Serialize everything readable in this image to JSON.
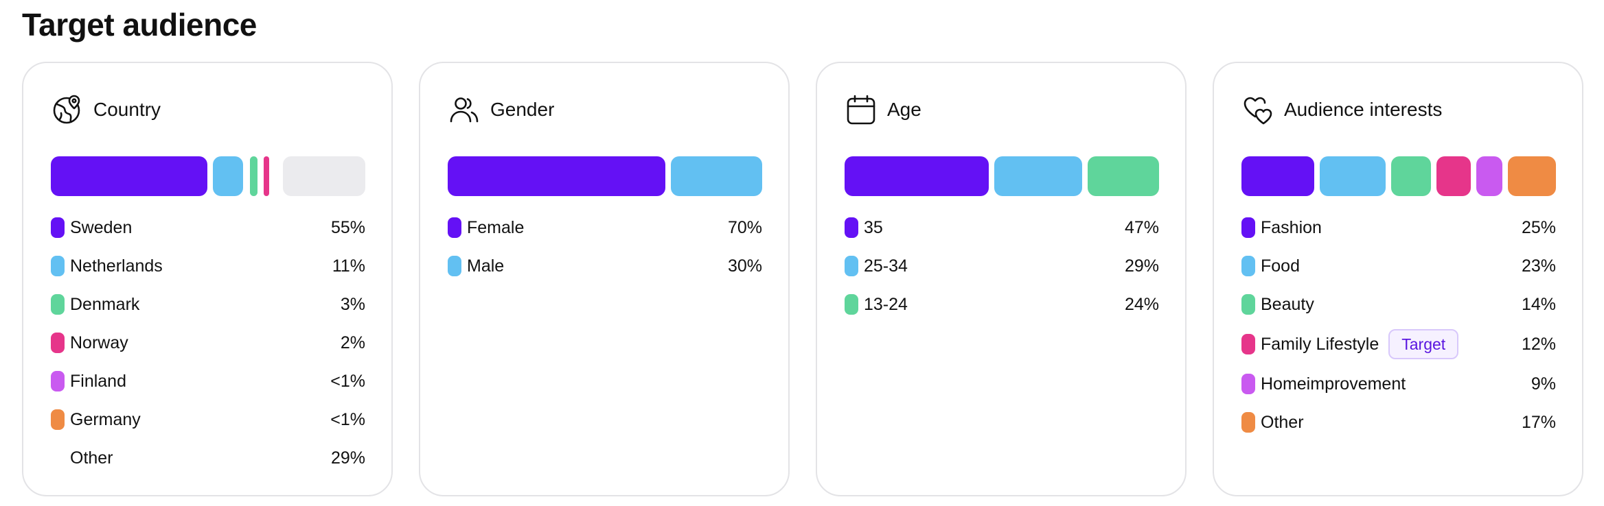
{
  "page": {
    "title": "Target audience"
  },
  "colors": {
    "purple": "#6411f5",
    "blue": "#62c0f2",
    "green": "#5fd59b",
    "pink": "#e6358a",
    "violet": "#c95af0",
    "orange": "#ef8b44",
    "other": "#ebebee"
  },
  "cards": [
    {
      "title": "Country",
      "icon": "globe-icon",
      "items": [
        {
          "label": "Sweden",
          "value": "55%",
          "share": 55,
          "color": "#6411f5"
        },
        {
          "label": "Netherlands",
          "value": "11%",
          "share": 11,
          "color": "#62c0f2"
        },
        {
          "label": "Denmark",
          "value": "3%",
          "share": 3,
          "color": "#5fd59b"
        },
        {
          "label": "Norway",
          "value": "2%",
          "share": 2,
          "color": "#e6358a"
        },
        {
          "label": "Finland",
          "value": "<1%",
          "share": 0,
          "color": "#c95af0"
        },
        {
          "label": "Germany",
          "value": "<1%",
          "share": 0,
          "color": "#ef8b44"
        },
        {
          "label": "Other",
          "value": "29%",
          "share": 29,
          "color": "#ebebee"
        }
      ]
    },
    {
      "title": "Gender",
      "icon": "users-icon",
      "items": [
        {
          "label": "Female",
          "value": "70%",
          "share": 70,
          "color": "#6411f5"
        },
        {
          "label": "Male",
          "value": "30%",
          "share": 30,
          "color": "#62c0f2"
        }
      ]
    },
    {
      "title": "Age",
      "icon": "calendar-icon",
      "items": [
        {
          "label": "35",
          "value": "47%",
          "share": 47,
          "color": "#6411f5"
        },
        {
          "label": "25-34",
          "value": "29%",
          "share": 29,
          "color": "#62c0f2"
        },
        {
          "label": "13-24",
          "value": "24%",
          "share": 24,
          "color": "#5fd59b"
        }
      ]
    },
    {
      "title": "Audience interests",
      "icon": "hearts-icon",
      "items": [
        {
          "label": "Fashion",
          "value": "25%",
          "share": 25,
          "color": "#6411f5"
        },
        {
          "label": "Food",
          "value": "23%",
          "share": 23,
          "color": "#62c0f2"
        },
        {
          "label": "Beauty",
          "value": "14%",
          "share": 14,
          "color": "#5fd59b"
        },
        {
          "label": "Family Lifestyle",
          "value": "12%",
          "share": 12,
          "color": "#e6358a",
          "tag": "Target"
        },
        {
          "label": "Homeimprovement",
          "value": "9%",
          "share": 9,
          "color": "#c95af0"
        },
        {
          "label": "Other",
          "value": "17%",
          "share": 17,
          "color": "#ef8b44"
        }
      ]
    }
  ]
}
